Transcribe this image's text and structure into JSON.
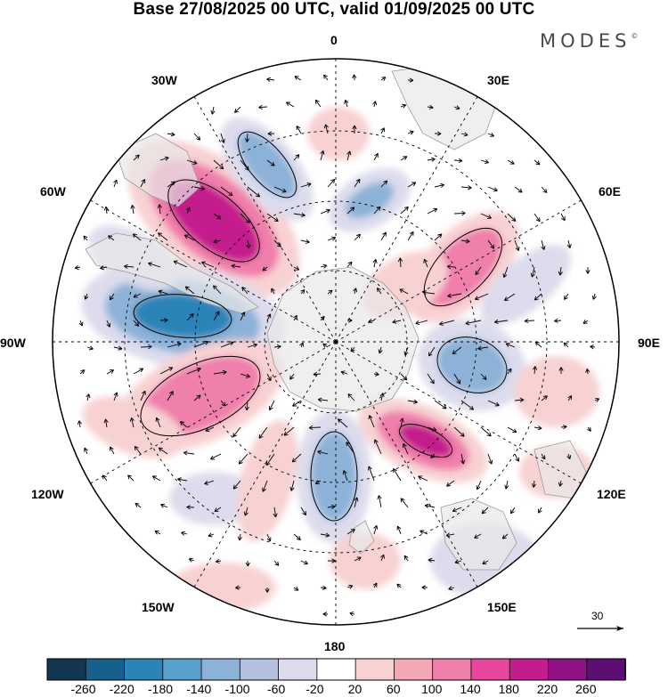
{
  "title": "Base 27/08/2025 00 UTC, valid 01/09/2025 00 UTC",
  "logo": "MODES",
  "logo_mark": "©",
  "longitude_labels": {
    "lon_0": "0",
    "lon_30e": "30E",
    "lon_60e": "60E",
    "lon_90e": "90E",
    "lon_120e": "120E",
    "lon_150e": "150E",
    "lon_180": "180",
    "lon_150w": "150W",
    "lon_120w": "120W",
    "lon_90w": "90W",
    "lon_60w": "60W",
    "lon_30w": "30W"
  },
  "reference_vector": {
    "value": "30"
  },
  "colorbar": {
    "colors": [
      "#12364f",
      "#175f8d",
      "#2b84b8",
      "#5aa0cf",
      "#8db2d8",
      "#b4c0de",
      "#dcdcec",
      "#ffffff",
      "#f8d1d3",
      "#f4a8b6",
      "#ef7fab",
      "#e6469c",
      "#c41c8c",
      "#8e1285",
      "#5d0e74"
    ],
    "labels": [
      "-260",
      "-220",
      "-180",
      "-140",
      "-100",
      "-60",
      "-20",
      "20",
      "60",
      "100",
      "140",
      "180",
      "220",
      "260"
    ]
  },
  "colors": {
    "land": "#e8e8e8",
    "land_outline": "#9a9a9a",
    "positive_light": "#f8d1d3",
    "positive_mid": "#ef7fab",
    "positive_strong": "#c41c8c",
    "negative_light": "#dcdcec",
    "negative_mid": "#8db2d8",
    "negative_strong": "#2b84b8"
  }
}
